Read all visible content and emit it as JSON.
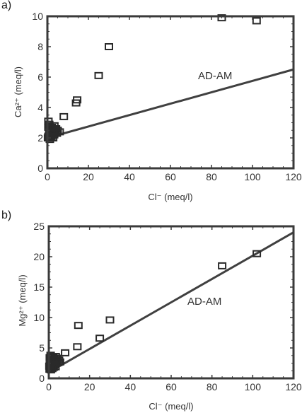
{
  "chart_data": [
    {
      "type": "scatter",
      "panel_label": "a)",
      "xlabel": "Cl⁻ (meq/l)",
      "ylabel": "Ca²⁺ (meq/l)",
      "xlim": [
        0,
        120
      ],
      "ylim": [
        0,
        10
      ],
      "x_ticks": [
        "0",
        "20",
        "40",
        "60",
        "80",
        "100",
        "120"
      ],
      "y_ticks": [
        "0",
        "2",
        "4",
        "6",
        "8",
        "10"
      ],
      "grid": false,
      "points": {
        "x": [
          0.3,
          0.5,
          0.8,
          1.0,
          1.2,
          1.5,
          1.8,
          2.0,
          2.3,
          2.6,
          3.0,
          3.4,
          3.8,
          4.2,
          4.6,
          5.0,
          0.5,
          1.0,
          1.6,
          2.2,
          2.8,
          3.4,
          4.0,
          0.7,
          1.3,
          2.0,
          2.6,
          3.3,
          0.9,
          0.5,
          0.8,
          1.2,
          2.0,
          2.8,
          6.0,
          8.0,
          14.0,
          14.5,
          25.0,
          30.0,
          85.0,
          102.0
        ],
        "y": [
          2.0,
          2.1,
          2.2,
          2.3,
          2.0,
          2.4,
          2.1,
          2.5,
          2.3,
          2.6,
          2.2,
          2.5,
          2.4,
          2.6,
          2.3,
          2.5,
          2.7,
          2.8,
          2.6,
          2.7,
          2.5,
          2.8,
          2.6,
          2.1,
          2.2,
          2.3,
          2.4,
          2.2,
          2.9,
          3.1,
          2.0,
          1.9,
          2.1,
          2.0,
          2.4,
          3.4,
          4.3,
          4.5,
          6.1,
          8.0,
          9.9,
          9.7
        ]
      },
      "line": {
        "label": "AD-AM",
        "x": [
          0,
          120
        ],
        "y": [
          2.0,
          6.5
        ]
      }
    },
    {
      "type": "scatter",
      "panel_label": "b)",
      "xlabel": "Cl⁻ (meq/l)",
      "ylabel": "Mg²⁺ (meq/l)",
      "xlim": [
        0,
        120
      ],
      "ylim": [
        0,
        25
      ],
      "x_ticks": [
        "0",
        "20",
        "40",
        "60",
        "80",
        "100",
        "120"
      ],
      "y_ticks": [
        "0",
        "5",
        "10",
        "15",
        "20",
        "25"
      ],
      "grid": false,
      "points": {
        "x": [
          0.3,
          0.5,
          0.8,
          1.0,
          1.2,
          1.5,
          1.8,
          2.0,
          2.3,
          2.6,
          3.0,
          3.4,
          3.8,
          4.2,
          4.6,
          5.0,
          0.5,
          1.0,
          1.6,
          2.2,
          2.8,
          3.4,
          4.0,
          0.7,
          1.3,
          2.0,
          2.6,
          3.3,
          0.9,
          0.4,
          1.0,
          1.7,
          2.4,
          5.5,
          8.0,
          14.0,
          14.5,
          25.0,
          30.0,
          85.0,
          102.0
        ],
        "y": [
          2.0,
          2.2,
          2.4,
          2.6,
          2.0,
          2.8,
          2.3,
          3.0,
          2.6,
          3.2,
          2.4,
          3.0,
          2.8,
          3.3,
          2.6,
          3.0,
          3.4,
          3.6,
          3.2,
          3.5,
          3.0,
          3.6,
          3.3,
          1.8,
          1.6,
          2.0,
          2.2,
          1.9,
          3.8,
          1.5,
          1.4,
          1.6,
          1.8,
          2.7,
          4.2,
          5.2,
          8.7,
          6.6,
          9.6,
          18.5,
          20.5
        ]
      },
      "line": {
        "label": "AD-AM",
        "x": [
          0,
          120
        ],
        "y": [
          1.0,
          24.0
        ]
      }
    }
  ]
}
